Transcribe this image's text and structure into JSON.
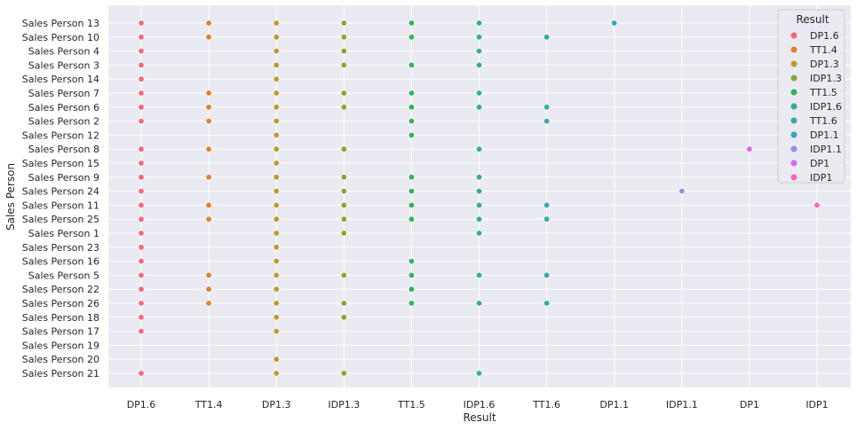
{
  "chart_data": {
    "type": "scatter",
    "xlabel": "Result",
    "ylabel": "Sales Person",
    "x_categories": [
      "DP1.6",
      "TT1.4",
      "DP1.3",
      "IDP1.3",
      "TT1.5",
      "IDP1.6",
      "TT1.6",
      "DP1.1",
      "IDP1.1",
      "DP1",
      "IDP1"
    ],
    "y_categories": [
      "Sales Person 13",
      "Sales Person 10",
      "Sales Person 4",
      "Sales Person 3",
      "Sales Person 14",
      "Sales Person 7",
      "Sales Person 6",
      "Sales Person 2",
      "Sales Person 12",
      "Sales Person 8",
      "Sales Person 15",
      "Sales Person 9",
      "Sales Person 24",
      "Sales Person 11",
      "Sales Person 25",
      "Sales Person 1",
      "Sales Person 23",
      "Sales Person 16",
      "Sales Person 5",
      "Sales Person 22",
      "Sales Person 26",
      "Sales Person 18",
      "Sales Person 17",
      "Sales Person 19",
      "Sales Person 20",
      "Sales Person 21"
    ],
    "legend": {
      "title": "Result",
      "position": "top-right"
    },
    "grid": true,
    "series": [
      {
        "name": "DP1.6",
        "color": "#f0697a",
        "y": [
          "Sales Person 13",
          "Sales Person 10",
          "Sales Person 4",
          "Sales Person 3",
          "Sales Person 14",
          "Sales Person 7",
          "Sales Person 6",
          "Sales Person 2",
          "Sales Person 8",
          "Sales Person 15",
          "Sales Person 9",
          "Sales Person 24",
          "Sales Person 11",
          "Sales Person 25",
          "Sales Person 1",
          "Sales Person 23",
          "Sales Person 16",
          "Sales Person 5",
          "Sales Person 22",
          "Sales Person 26",
          "Sales Person 18",
          "Sales Person 17",
          "Sales Person 21"
        ]
      },
      {
        "name": "TT1.4",
        "color": "#e18031",
        "y": [
          "Sales Person 13",
          "Sales Person 10",
          "Sales Person 7",
          "Sales Person 6",
          "Sales Person 2",
          "Sales Person 8",
          "Sales Person 9",
          "Sales Person 11",
          "Sales Person 25",
          "Sales Person 5",
          "Sales Person 22",
          "Sales Person 26"
        ]
      },
      {
        "name": "DP1.3",
        "color": "#bc9b2e",
        "y": [
          "Sales Person 13",
          "Sales Person 10",
          "Sales Person 4",
          "Sales Person 3",
          "Sales Person 14",
          "Sales Person 7",
          "Sales Person 6",
          "Sales Person 2",
          "Sales Person 12",
          "Sales Person 8",
          "Sales Person 15",
          "Sales Person 9",
          "Sales Person 24",
          "Sales Person 11",
          "Sales Person 25",
          "Sales Person 1",
          "Sales Person 23",
          "Sales Person 16",
          "Sales Person 5",
          "Sales Person 22",
          "Sales Person 26",
          "Sales Person 18",
          "Sales Person 17",
          "Sales Person 20",
          "Sales Person 21"
        ]
      },
      {
        "name": "IDP1.3",
        "color": "#8fa32f",
        "y": [
          "Sales Person 13",
          "Sales Person 10",
          "Sales Person 4",
          "Sales Person 3",
          "Sales Person 7",
          "Sales Person 6",
          "Sales Person 8",
          "Sales Person 9",
          "Sales Person 24",
          "Sales Person 11",
          "Sales Person 25",
          "Sales Person 1",
          "Sales Person 5",
          "Sales Person 26",
          "Sales Person 18",
          "Sales Person 21"
        ]
      },
      {
        "name": "TT1.5",
        "color": "#31b35e",
        "y": [
          "Sales Person 13",
          "Sales Person 10",
          "Sales Person 3",
          "Sales Person 7",
          "Sales Person 6",
          "Sales Person 2",
          "Sales Person 12",
          "Sales Person 9",
          "Sales Person 24",
          "Sales Person 11",
          "Sales Person 25",
          "Sales Person 16",
          "Sales Person 5",
          "Sales Person 22",
          "Sales Person 26"
        ]
      },
      {
        "name": "IDP1.6",
        "color": "#35ad8e",
        "y": [
          "Sales Person 13",
          "Sales Person 10",
          "Sales Person 4",
          "Sales Person 3",
          "Sales Person 7",
          "Sales Person 6",
          "Sales Person 8",
          "Sales Person 9",
          "Sales Person 24",
          "Sales Person 11",
          "Sales Person 25",
          "Sales Person 1",
          "Sales Person 5",
          "Sales Person 26",
          "Sales Person 21"
        ]
      },
      {
        "name": "TT1.6",
        "color": "#36aba6",
        "y": [
          "Sales Person 10",
          "Sales Person 6",
          "Sales Person 2",
          "Sales Person 11",
          "Sales Person 25",
          "Sales Person 5",
          "Sales Person 26"
        ]
      },
      {
        "name": "DP1.1",
        "color": "#37a6c7",
        "y": [
          "Sales Person 13"
        ]
      },
      {
        "name": "IDP1.1",
        "color": "#8c92e8",
        "y": [
          "Sales Person 24"
        ]
      },
      {
        "name": "DP1",
        "color": "#d36bed",
        "y": [
          "Sales Person 8"
        ]
      },
      {
        "name": "IDP1",
        "color": "#f166c0",
        "y": [
          "Sales Person 11"
        ]
      }
    ]
  }
}
